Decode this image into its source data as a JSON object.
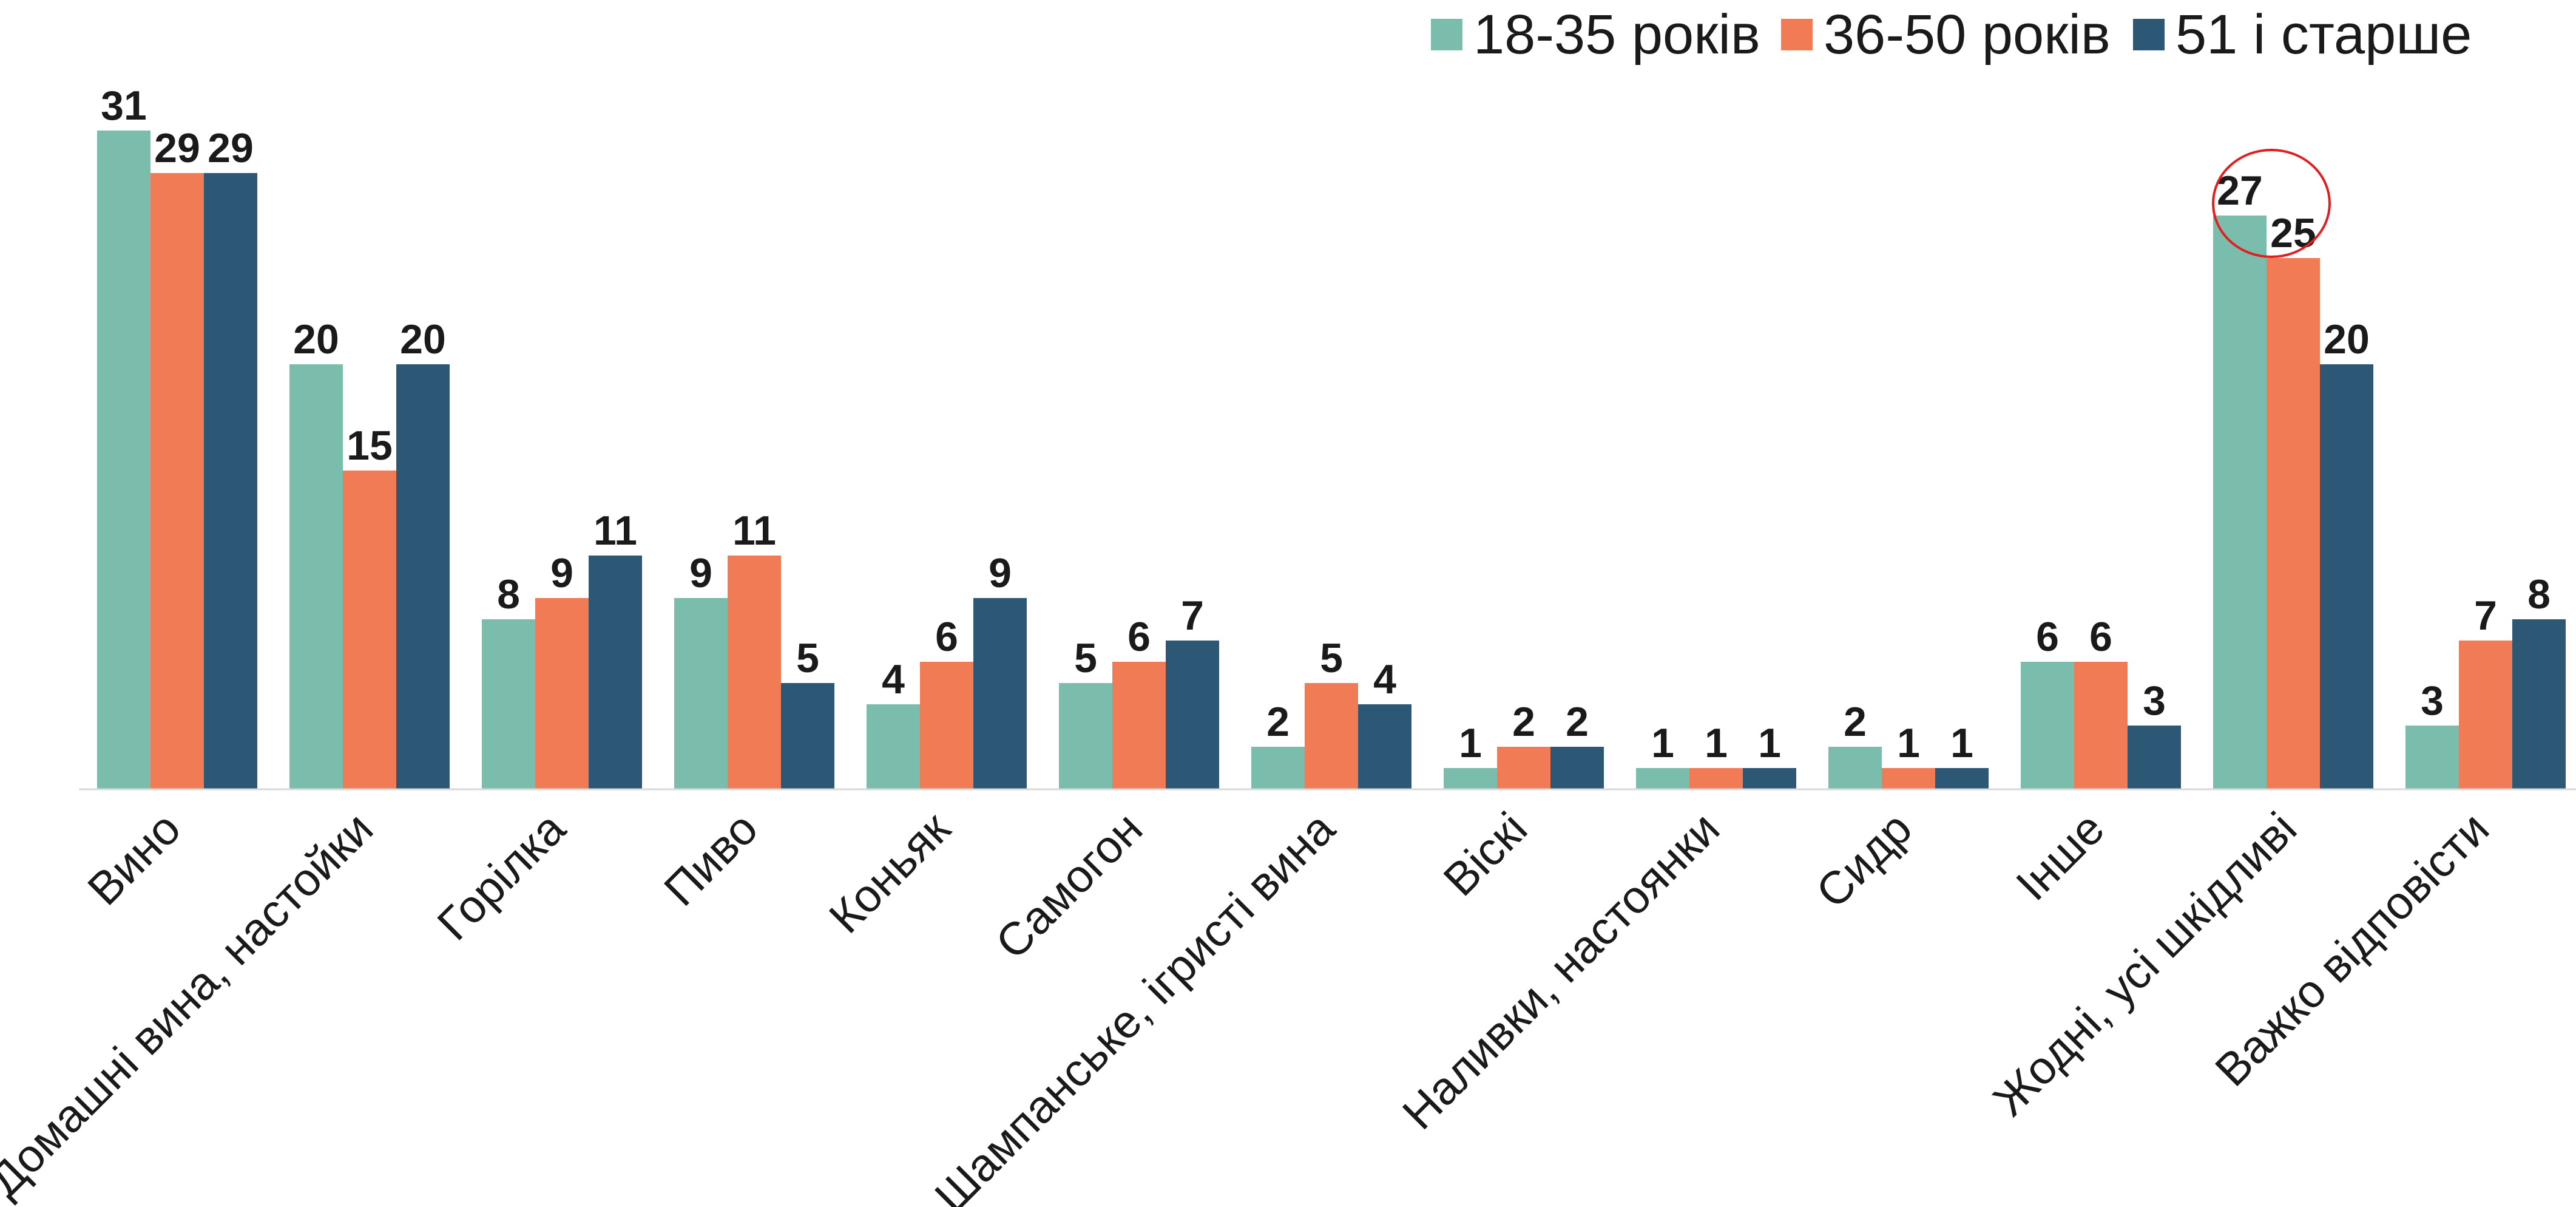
{
  "chart_data": {
    "type": "bar",
    "title": "",
    "xlabel": "",
    "ylabel": "",
    "ylim": [
      0,
      34
    ],
    "grid": false,
    "legend_position": "top-right",
    "categories": [
      "Вино",
      "Домашні вина, настойки",
      "Горілка",
      "Пиво",
      "Коньяк",
      "Самогон",
      "Шампанське, ігристі вина",
      "Віскі",
      "Наливки, настоянки",
      "Сидр",
      "Інше",
      "Жодні, усі шкідливі",
      "Важко відповісти"
    ],
    "series": [
      {
        "name": "18-35 років",
        "color": "#7bbdad",
        "values": [
          31,
          20,
          8,
          9,
          4,
          5,
          2,
          1,
          1,
          2,
          6,
          27,
          3
        ]
      },
      {
        "name": "36-50 років",
        "color": "#f07b55",
        "values": [
          29,
          15,
          9,
          11,
          6,
          6,
          5,
          2,
          1,
          1,
          6,
          25,
          7
        ]
      },
      {
        "name": "51 і старше",
        "color": "#2c5876",
        "values": [
          29,
          20,
          11,
          5,
          9,
          7,
          4,
          2,
          1,
          1,
          3,
          20,
          8
        ]
      }
    ],
    "annotations": [
      {
        "type": "circle-highlight",
        "category_index": 11,
        "color": "#e02020"
      }
    ]
  }
}
